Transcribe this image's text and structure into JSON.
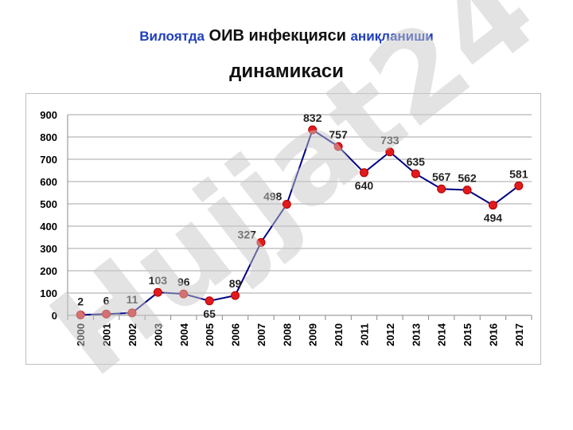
{
  "header": {
    "title_part1": "Вилоятда",
    "title_part2": "ОИВ инфекцияси",
    "title_part3": "аниқланиши",
    "title_line2": "динамикаси"
  },
  "watermark": {
    "text": "Hujjat24"
  },
  "chart_data": {
    "type": "line",
    "title": "Вилоятда ОИВ инфекцияси аниқланиши динамикаси",
    "categories": [
      "2000",
      "2001",
      "2002",
      "2003",
      "2004",
      "2005",
      "2006",
      "2007",
      "2008",
      "2009",
      "2010",
      "2011",
      "2012",
      "2013",
      "2014",
      "2015",
      "2016",
      "2017"
    ],
    "values": [
      2,
      6,
      11,
      103,
      96,
      65,
      89,
      327,
      498,
      832,
      757,
      640,
      733,
      635,
      567,
      562,
      494,
      581
    ],
    "ylim": [
      0,
      900
    ],
    "yticks": [
      0,
      100,
      200,
      300,
      400,
      500,
      600,
      700,
      800,
      900
    ],
    "xlabel": "",
    "ylabel": "",
    "grid": true,
    "line_color": "#000080",
    "marker_color": "#e31a1c",
    "legend": "none"
  }
}
